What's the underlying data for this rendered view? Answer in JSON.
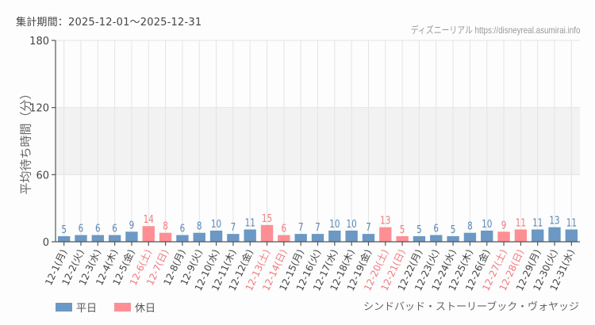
{
  "header": {
    "period_label": "集計期間：2025-12-01～2025-12-31",
    "credit": "ディズニーリアル https://disneyreal.asumirai.info"
  },
  "attraction_name": "シンドバッド・ストーリーブック・ヴォヤッジ",
  "legend": {
    "weekday": {
      "label": "平日",
      "color": "#6b98c4"
    },
    "holiday": {
      "label": "休日",
      "color": "#fd8f94"
    }
  },
  "colors": {
    "weekday_bar": "#6b98c4",
    "holiday_bar": "#fd8f94",
    "weekday_text": "#5a86b8",
    "holiday_text": "#f07a80",
    "band": "#f2f2f2",
    "grid": "#e4e4e4",
    "axis": "#555555"
  },
  "chart_data": {
    "type": "bar",
    "title": "集計期間：2025-12-01～2025-12-31",
    "xlabel": "",
    "ylabel": "平均待ち時間（分）",
    "ylim": [
      0,
      180
    ],
    "yticks": [
      0,
      60,
      120,
      180
    ],
    "highlight_band": [
      60,
      120
    ],
    "grid": true,
    "legend_position": "bottom-left",
    "categories": [
      "12-1(月)",
      "12-2(火)",
      "12-3(水)",
      "12-4(木)",
      "12-5(金)",
      "12-6(土)",
      "12-7(日)",
      "12-8(月)",
      "12-9(火)",
      "12-10(水)",
      "12-11(木)",
      "12-12(金)",
      "12-13(土)",
      "12-14(日)",
      "12-15(月)",
      "12-16(火)",
      "12-17(水)",
      "12-18(木)",
      "12-19(金)",
      "12-20(土)",
      "12-21(日)",
      "12-22(月)",
      "12-23(火)",
      "12-24(水)",
      "12-25(木)",
      "12-26(金)",
      "12-27(土)",
      "12-28(日)",
      "12-29(月)",
      "12-30(火)",
      "12-31(水)"
    ],
    "values": [
      5,
      6,
      6,
      6,
      9,
      14,
      8,
      6,
      8,
      10,
      7,
      11,
      15,
      6,
      7,
      7,
      10,
      10,
      7,
      13,
      5,
      5,
      6,
      5,
      8,
      10,
      9,
      11,
      11,
      13,
      11
    ],
    "day_type": [
      "weekday",
      "weekday",
      "weekday",
      "weekday",
      "weekday",
      "holiday",
      "holiday",
      "weekday",
      "weekday",
      "weekday",
      "weekday",
      "weekday",
      "holiday",
      "holiday",
      "weekday",
      "weekday",
      "weekday",
      "weekday",
      "weekday",
      "holiday",
      "holiday",
      "weekday",
      "weekday",
      "weekday",
      "weekday",
      "weekday",
      "holiday",
      "holiday",
      "weekday",
      "weekday",
      "weekday"
    ],
    "series": [
      {
        "name": "平日",
        "color": "#6b98c4"
      },
      {
        "name": "休日",
        "color": "#fd8f94"
      }
    ]
  }
}
